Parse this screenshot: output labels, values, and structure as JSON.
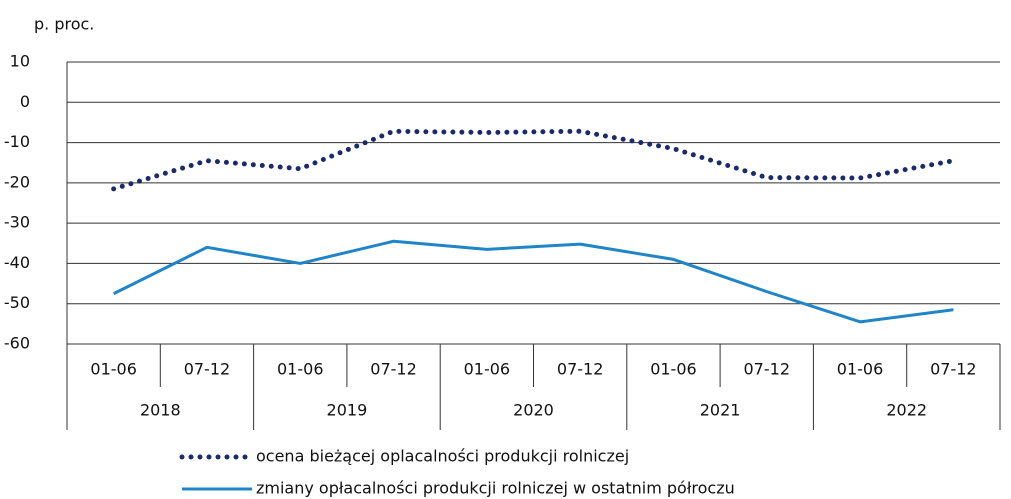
{
  "chart_data": {
    "type": "line",
    "y_axis_label": "p. proc.",
    "categories": [
      "01-06",
      "07-12",
      "01-06",
      "07-12",
      "01-06",
      "07-12",
      "01-06",
      "07-12",
      "01-06",
      "07-12"
    ],
    "category_groups": [
      "2018",
      "2019",
      "2020",
      "2021",
      "2022"
    ],
    "series": [
      {
        "name": "ocena bieżącej oplacalności produkcji rolniczej",
        "color": "#1b2a6b",
        "dash": "dotted",
        "values": [
          -21.5,
          -14.5,
          -16.5,
          -7.2,
          -7.5,
          -7.2,
          -11.5,
          -18.7,
          -18.8,
          -14.5
        ]
      },
      {
        "name": "zmiany opłacalności produkcji rolniczej w ostatnim półroczu",
        "color": "#1f84c8",
        "dash": "solid",
        "values": [
          -47.5,
          -36,
          -40,
          -34.5,
          -36.5,
          -35.2,
          -39,
          -47,
          -54.5,
          -51.5
        ]
      }
    ],
    "ylim": [
      -60,
      10
    ],
    "yticks": [
      10,
      0,
      -10,
      -20,
      -30,
      -40,
      -50,
      -60
    ],
    "grid": true,
    "legend": "bottom"
  }
}
